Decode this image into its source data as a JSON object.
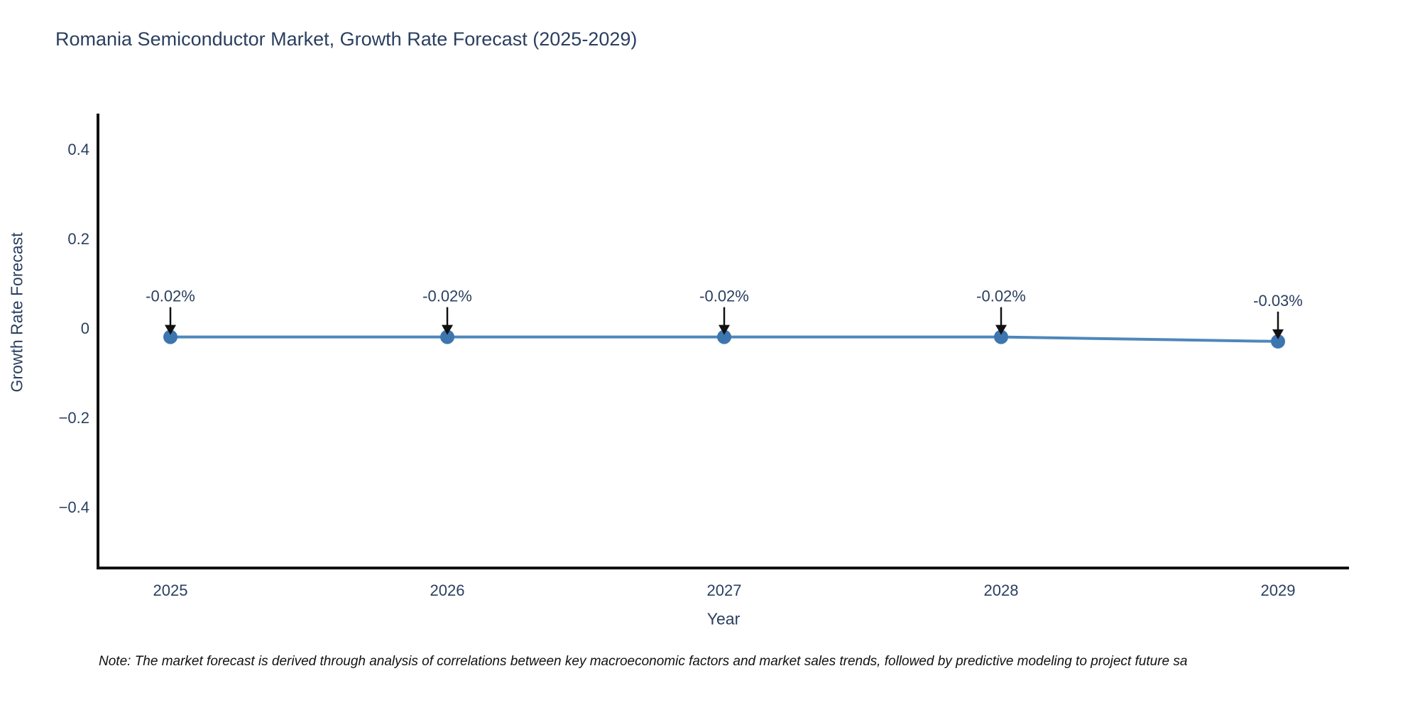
{
  "title": "Romania Semiconductor Market, Growth Rate Forecast (2025-2029)",
  "footnote": "Note: The market forecast is derived through analysis of correlations between key macroeconomic factors and market sales trends, followed by predictive modeling to project future sa",
  "chart_data": {
    "type": "line",
    "title": "Romania Semiconductor Market, Growth Rate Forecast (2025-2029)",
    "xlabel": "Year",
    "ylabel": "Growth Rate Forecast",
    "x": [
      2025,
      2026,
      2027,
      2028,
      2029
    ],
    "x_labels": [
      "2025",
      "2026",
      "2027",
      "2028",
      "2029"
    ],
    "series": [
      {
        "name": "Growth Rate Forecast",
        "values": [
          -0.02,
          -0.02,
          -0.02,
          -0.02,
          -0.03
        ],
        "point_labels": [
          "-0.02%",
          "-0.02%",
          "-0.02%",
          "-0.02%",
          "-0.03%"
        ]
      }
    ],
    "ylim": [
      -0.5365,
      0.4794
    ],
    "yticks": [
      0.4,
      0.2,
      0,
      -0.2,
      -0.4
    ],
    "ytick_labels": [
      "0.4",
      "0.2",
      "0",
      "−0.2",
      "−0.4"
    ],
    "grid": false,
    "legend": false,
    "annotations_have_arrows": true
  },
  "colors": {
    "title_text": "#2a3f5f",
    "tick_text": "#2a3f5f",
    "axis_line": "#111111",
    "trace_line": "#4e87bb",
    "marker_fill": "#3d76af",
    "annotation_text": "#2a3f5f",
    "annotation_arrow": "#111111",
    "footnote_text": "#111111",
    "background": "#ffffff"
  }
}
